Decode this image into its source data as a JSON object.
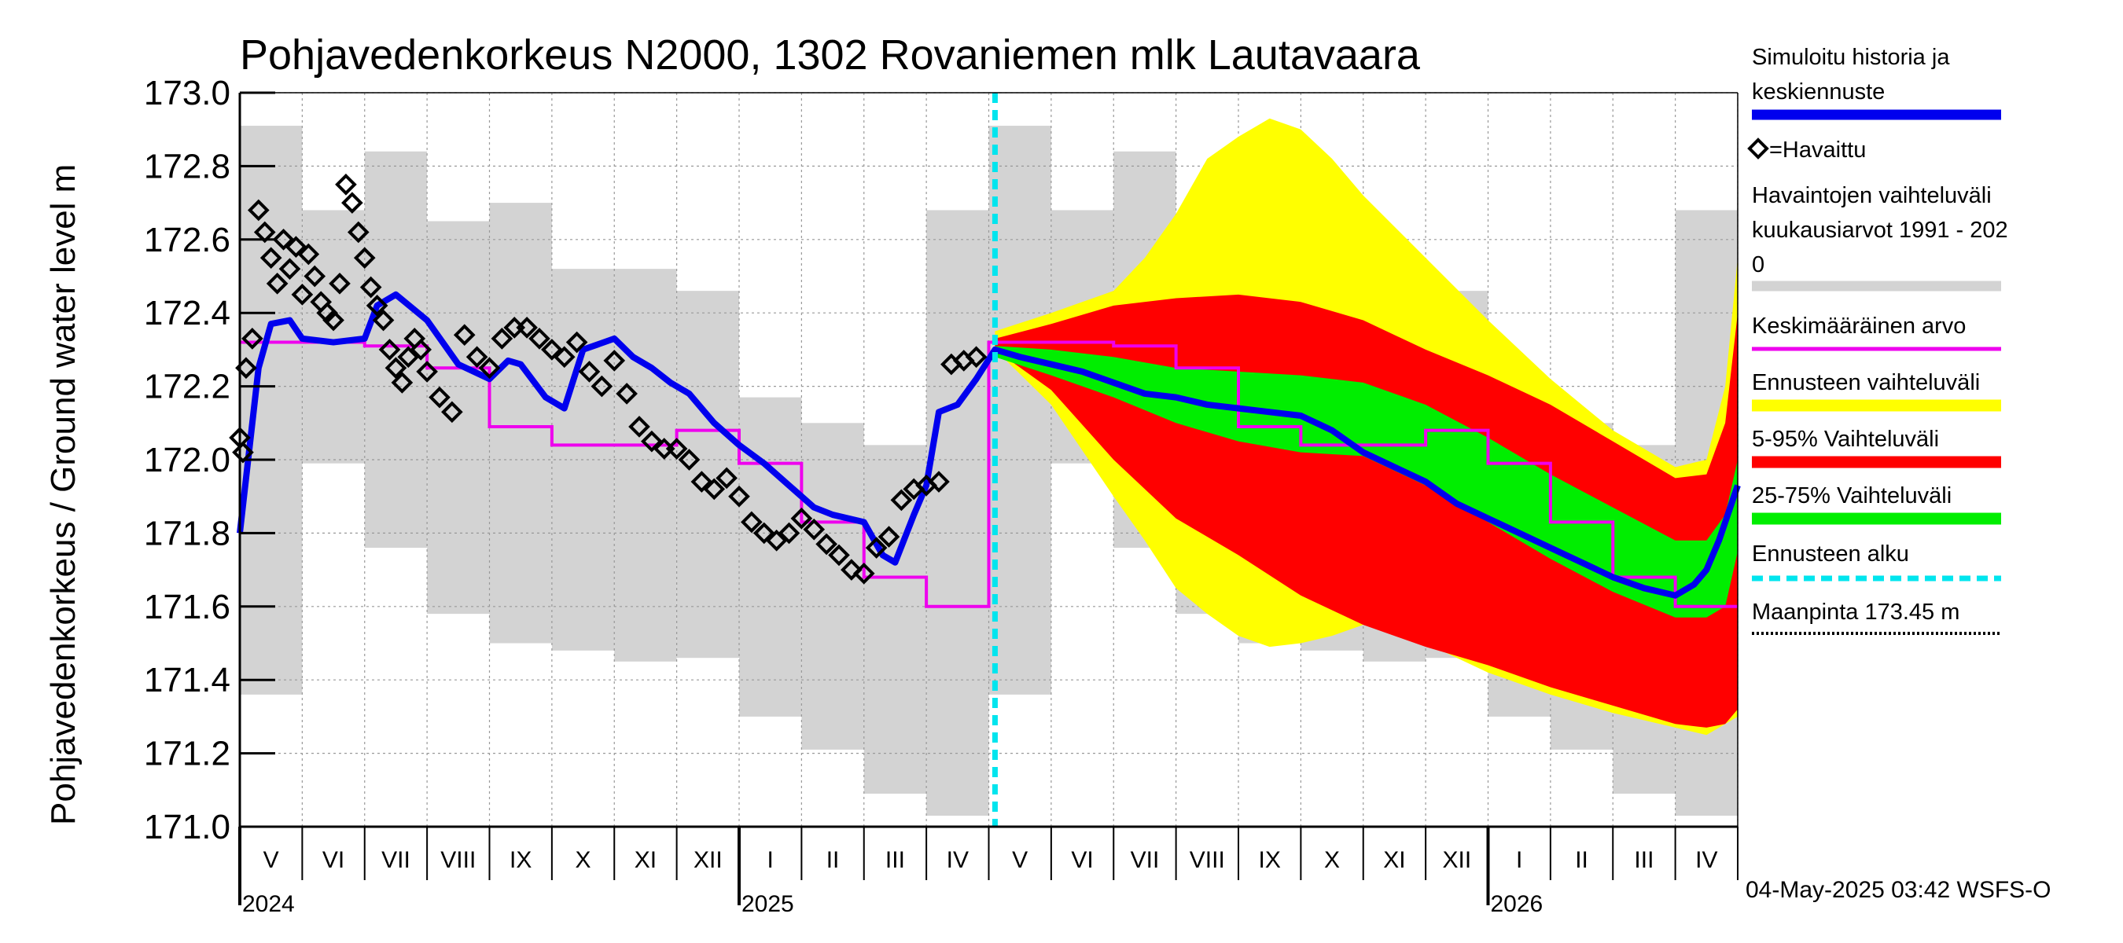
{
  "chart_data": {
    "type": "line",
    "title": "Pohjavedenkorkeus N2000, 1302 Rovaniemen mlk Lautavaara",
    "ylabel": "Pohjavedenkorkeus / Ground water level   m",
    "ylim": [
      171.0,
      173.0
    ],
    "yticks": [
      "171.0",
      "171.2",
      "171.4",
      "171.6",
      "171.8",
      "172.0",
      "172.2",
      "172.4",
      "172.6",
      "172.8",
      "173.0"
    ],
    "x_months": [
      "V",
      "VI",
      "VII",
      "VIII",
      "IX",
      "X",
      "XI",
      "XII",
      "I",
      "II",
      "III",
      "IV",
      "V",
      "VI",
      "VII",
      "VIII",
      "IX",
      "X",
      "XI",
      "XII",
      "I",
      "II",
      "III",
      "IV"
    ],
    "x_years": [
      {
        "label": "2024",
        "month_index": 0
      },
      {
        "label": "2025",
        "month_index": 8
      },
      {
        "label": "2026",
        "month_index": 20
      }
    ],
    "forecast_start_month_index": 12.1,
    "timestamp": "04-May-2025 03:42 WSFS-O",
    "legend": [
      {
        "label": "Simuloitu historia ja keskiennuste",
        "color": "#0000ee",
        "style": "thick"
      },
      {
        "label": "=Havaittu",
        "color": "#000000",
        "style": "diamond"
      },
      {
        "label": "Havaintojen vaihteluväli kuukausiarvot 1991 - 2020",
        "color": "#d3d3d3",
        "style": "band"
      },
      {
        "label": "Keskimääräinen arvo",
        "color": "#ee00ee",
        "style": "line"
      },
      {
        "label": "Ennusteen vaihteluväli",
        "color": "#ffff00",
        "style": "band"
      },
      {
        "label": "5-95% Vaihteluväli",
        "color": "#ff0000",
        "style": "band"
      },
      {
        "label": "25-75% Vaihteluväli",
        "color": "#00ee00",
        "style": "band"
      },
      {
        "label": "Ennusteen alku",
        "color": "#00e5ee",
        "style": "dashed"
      },
      {
        "label": "Maanpinta 173.45 m",
        "color": "#000000",
        "style": "dotted"
      }
    ],
    "colors": {
      "history": "#0000ee",
      "observed": "#000000",
      "range_band": "#d3d3d3",
      "mean": "#ee00ee",
      "forecast_range": "#ffff00",
      "p5_95": "#ff0000",
      "p25_75": "#00ee00",
      "forecast_start": "#00e5ee",
      "ground": "#000000"
    },
    "series": [
      {
        "name": "Havaintojen vaihteluväli kuukausiarvot 1991 - 2020",
        "kind": "monthly_band",
        "low": [
          171.36,
          171.99,
          171.76,
          171.58,
          171.5,
          171.48,
          171.45,
          171.46,
          171.3,
          171.21,
          171.09,
          171.03,
          171.36,
          171.99,
          171.76,
          171.58,
          171.5,
          171.48,
          171.45,
          171.46,
          171.3,
          171.21,
          171.09,
          171.03
        ],
        "high": [
          172.91,
          172.68,
          172.84,
          172.65,
          172.7,
          172.52,
          172.52,
          172.46,
          172.17,
          172.1,
          172.04,
          172.68,
          172.91,
          172.68,
          172.84,
          172.65,
          172.7,
          172.52,
          172.52,
          172.46,
          172.17,
          172.1,
          172.04,
          172.68
        ]
      },
      {
        "name": "Keskimääräinen arvo",
        "kind": "monthly_step",
        "values": [
          172.32,
          172.32,
          172.31,
          172.25,
          172.09,
          172.04,
          172.04,
          172.08,
          171.99,
          171.83,
          171.68,
          171.6,
          172.32,
          172.32,
          172.31,
          172.25,
          172.09,
          172.04,
          172.04,
          172.08,
          171.99,
          171.83,
          171.68,
          171.6
        ]
      },
      {
        "name": "Simuloitu historia ja keskiennuste",
        "kind": "line",
        "x": [
          0.0,
          0.3,
          0.5,
          0.8,
          1.0,
          1.5,
          2.0,
          2.2,
          2.5,
          3.0,
          3.5,
          4.0,
          4.3,
          4.5,
          4.9,
          5.2,
          5.5,
          6.0,
          6.3,
          6.6,
          6.9,
          7.2,
          7.6,
          8.0,
          8.4,
          8.8,
          9.2,
          9.5,
          10.0,
          10.3,
          10.5,
          10.8,
          11.0,
          11.2,
          11.5,
          11.8,
          12.1,
          12.5,
          13.0,
          13.5,
          14.0,
          14.5,
          15.0,
          15.5,
          16.0,
          16.5,
          17.0,
          17.5,
          18.0,
          18.5,
          19.0,
          19.5,
          20.0,
          20.5,
          21.0,
          21.5,
          22.0,
          22.5,
          23.0,
          23.3,
          23.5,
          23.7,
          24.0
        ],
        "y": [
          171.8,
          172.25,
          172.37,
          172.38,
          172.33,
          172.32,
          172.33,
          172.42,
          172.45,
          172.38,
          172.26,
          172.22,
          172.27,
          172.26,
          172.17,
          172.14,
          172.3,
          172.33,
          172.28,
          172.25,
          172.21,
          172.18,
          172.1,
          172.04,
          171.99,
          171.93,
          171.87,
          171.85,
          171.83,
          171.74,
          171.72,
          171.85,
          171.93,
          172.13,
          172.15,
          172.22,
          172.3,
          172.28,
          172.26,
          172.24,
          172.21,
          172.18,
          172.17,
          172.15,
          172.14,
          172.13,
          172.12,
          172.08,
          172.02,
          171.98,
          171.94,
          171.88,
          171.84,
          171.8,
          171.76,
          171.72,
          171.68,
          171.65,
          171.63,
          171.66,
          171.7,
          171.78,
          171.93
        ]
      },
      {
        "name": "=Havaittu",
        "kind": "scatter",
        "x": [
          0.0,
          0.05,
          0.1,
          0.2,
          0.3,
          0.4,
          0.5,
          0.6,
          0.7,
          0.8,
          0.9,
          1.0,
          1.1,
          1.2,
          1.3,
          1.4,
          1.5,
          1.6,
          1.7,
          1.8,
          1.9,
          2.0,
          2.1,
          2.2,
          2.3,
          2.4,
          2.5,
          2.6,
          2.7,
          2.8,
          2.9,
          3.0,
          3.2,
          3.4,
          3.6,
          3.8,
          4.0,
          4.2,
          4.4,
          4.6,
          4.8,
          5.0,
          5.2,
          5.4,
          5.6,
          5.8,
          6.0,
          6.2,
          6.4,
          6.6,
          6.8,
          7.0,
          7.2,
          7.4,
          7.6,
          7.8,
          8.0,
          8.2,
          8.4,
          8.6,
          8.8,
          9.0,
          9.2,
          9.4,
          9.6,
          9.8,
          10.0,
          10.2,
          10.4,
          10.6,
          10.8,
          11.0,
          11.2,
          11.4,
          11.6,
          11.8
        ],
        "y": [
          172.06,
          172.02,
          172.25,
          172.33,
          172.68,
          172.62,
          172.55,
          172.48,
          172.6,
          172.52,
          172.58,
          172.45,
          172.56,
          172.5,
          172.43,
          172.4,
          172.38,
          172.48,
          172.75,
          172.7,
          172.62,
          172.55,
          172.47,
          172.42,
          172.38,
          172.3,
          172.25,
          172.21,
          172.28,
          172.33,
          172.3,
          172.24,
          172.17,
          172.13,
          172.34,
          172.28,
          172.25,
          172.33,
          172.36,
          172.36,
          172.33,
          172.3,
          172.28,
          172.32,
          172.24,
          172.2,
          172.27,
          172.18,
          172.09,
          172.05,
          172.03,
          172.03,
          172.0,
          171.94,
          171.92,
          171.95,
          171.9,
          171.83,
          171.8,
          171.78,
          171.8,
          171.84,
          171.81,
          171.77,
          171.74,
          171.7,
          171.69,
          171.76,
          171.79,
          171.89,
          171.92,
          171.93,
          171.94,
          172.26,
          172.27,
          172.28
        ]
      },
      {
        "name": "Ennusteen vaihteluväli",
        "kind": "band",
        "x": [
          12.1,
          13.0,
          14.0,
          14.5,
          15.0,
          15.5,
          16.0,
          16.5,
          17.0,
          17.5,
          18.0,
          19.0,
          20.0,
          21.0,
          22.0,
          23.0,
          23.5,
          23.8,
          24.0
        ],
        "low": [
          172.3,
          172.15,
          171.9,
          171.78,
          171.65,
          171.58,
          171.52,
          171.49,
          171.5,
          171.52,
          171.55,
          171.5,
          171.42,
          171.36,
          171.31,
          171.27,
          171.25,
          171.28,
          171.3
        ],
        "high": [
          172.35,
          172.4,
          172.46,
          172.55,
          172.67,
          172.82,
          172.88,
          172.93,
          172.9,
          172.82,
          172.72,
          172.55,
          172.38,
          172.22,
          172.08,
          171.98,
          172.0,
          172.2,
          172.55
        ]
      },
      {
        "name": "5-95% Vaihteluväli",
        "kind": "band",
        "x": [
          12.1,
          13.0,
          14.0,
          15.0,
          16.0,
          17.0,
          18.0,
          19.0,
          20.0,
          21.0,
          22.0,
          23.0,
          23.5,
          23.8,
          24.0
        ],
        "low": [
          172.3,
          172.19,
          172.0,
          171.84,
          171.74,
          171.63,
          171.55,
          171.49,
          171.44,
          171.38,
          171.33,
          171.28,
          171.27,
          171.28,
          171.32
        ],
        "high": [
          172.33,
          172.37,
          172.42,
          172.44,
          172.45,
          172.43,
          172.38,
          172.3,
          172.23,
          172.15,
          172.05,
          171.95,
          171.96,
          172.1,
          172.4
        ]
      },
      {
        "name": "25-75% Vaihteluväli",
        "kind": "band",
        "x": [
          12.1,
          13.0,
          14.0,
          15.0,
          16.0,
          17.0,
          18.0,
          19.0,
          20.0,
          21.0,
          22.0,
          23.0,
          23.5,
          23.8,
          24.0
        ],
        "low": [
          172.28,
          172.23,
          172.17,
          172.1,
          172.05,
          172.02,
          172.01,
          171.93,
          171.83,
          171.73,
          171.64,
          171.57,
          171.57,
          171.6,
          171.75
        ],
        "high": [
          172.31,
          172.3,
          172.28,
          172.25,
          172.24,
          172.23,
          172.21,
          172.15,
          172.06,
          171.96,
          171.87,
          171.78,
          171.78,
          171.85,
          172.0
        ]
      }
    ]
  }
}
